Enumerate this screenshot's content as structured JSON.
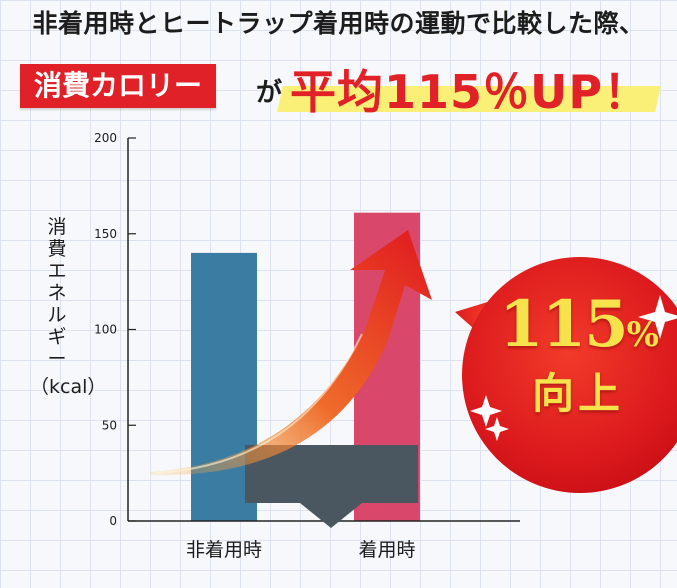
{
  "headline": "非着用時とヒートラップ着用時の運動で比較した際、",
  "subhead": {
    "label": "消費カロリー",
    "connector": "が",
    "result": "平均115％UP！"
  },
  "badge": {
    "value": "115",
    "unit": "%",
    "caption": "向上"
  },
  "colors": {
    "accent_red": "#e12128",
    "bar_nonwear": "#3b7ca3",
    "bar_wear": "#d9486a",
    "highlight_yellow": "#fbf077",
    "badge_text": "#f6e34c",
    "overlay_box": "#4a5760"
  },
  "chart_data": {
    "type": "bar",
    "categories": [
      "非着用時",
      "着用時"
    ],
    "values": [
      140,
      161
    ],
    "title": "",
    "xlabel": "",
    "ylabel": "消費エネルギー（kcal）",
    "ylabel_chars": [
      "消",
      "費",
      "エ",
      "ネ",
      "ル",
      "ギ",
      "ー"
    ],
    "ylabel_unit": "（kcal）",
    "ylim": [
      0,
      200
    ],
    "yticks": [
      "0",
      "50",
      "100",
      "150",
      "200"
    ],
    "grid": false
  }
}
